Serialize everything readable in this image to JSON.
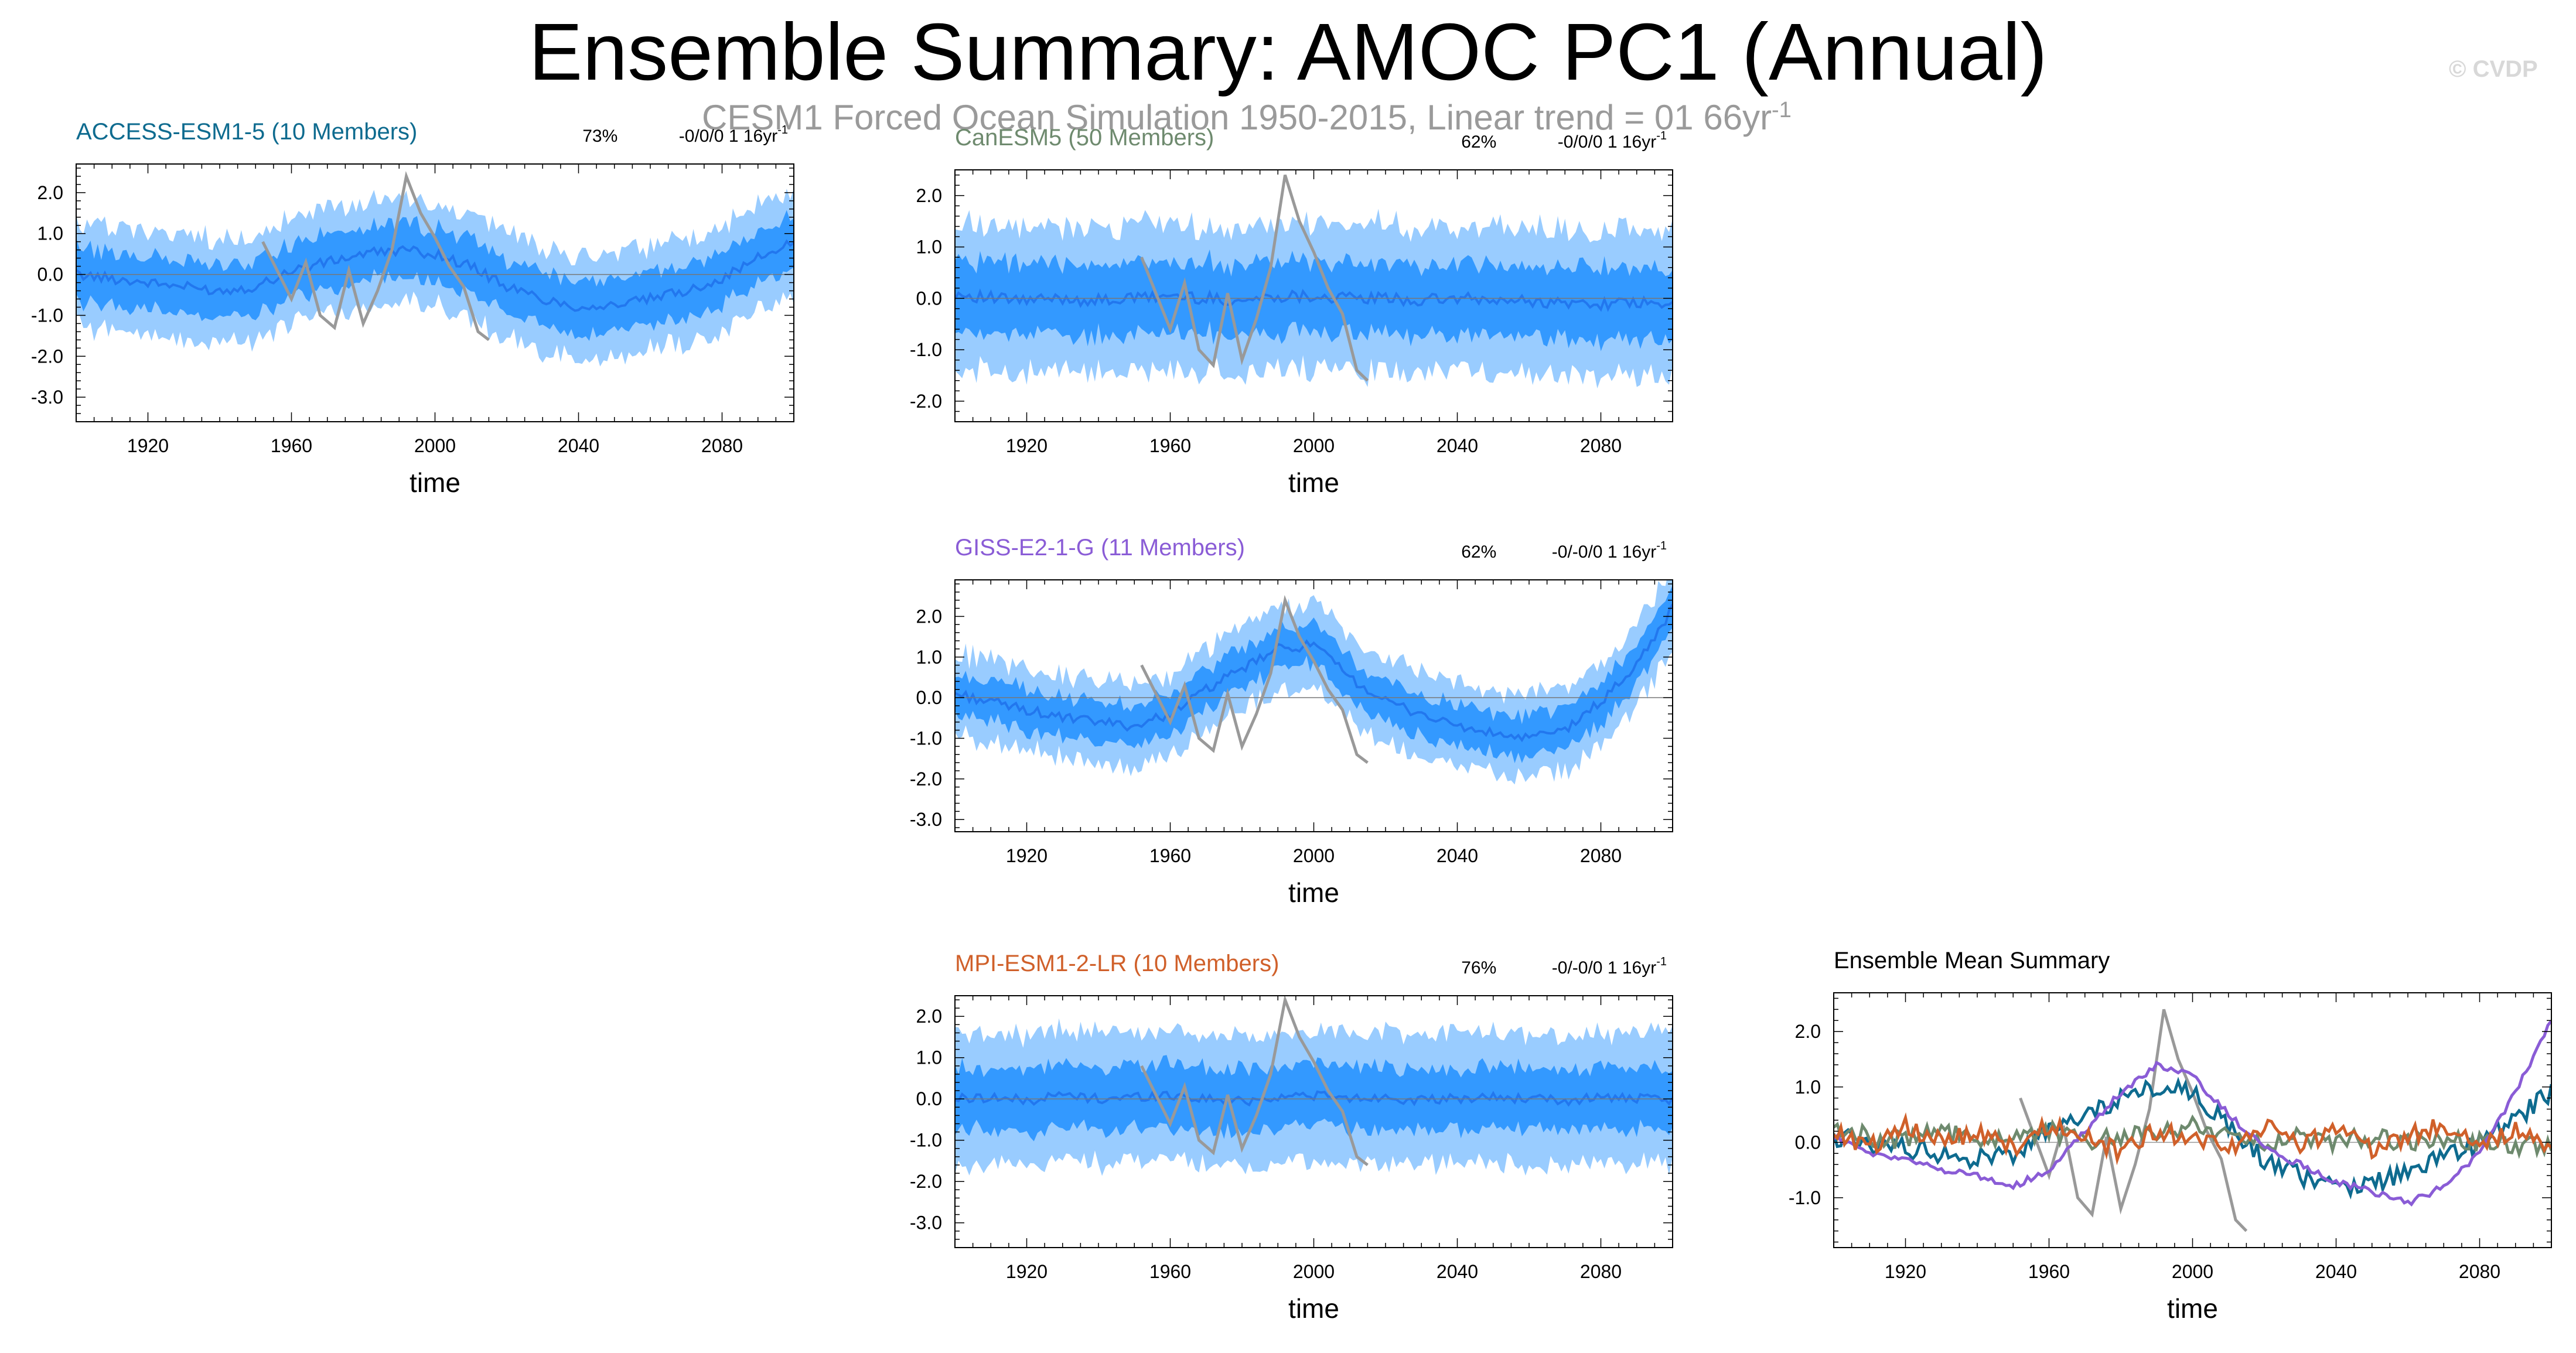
{
  "title": "Ensemble Summary: AMOC PC1 (Annual)",
  "subtitle": {
    "text": "CESM1 Forced Ocean Simulation 1950-2015, Linear trend = 01 66yr",
    "superscript": "-1"
  },
  "watermark": "© CVDP",
  "colors": {
    "band_outer": "#99ccff",
    "band_inner": "#3399ff",
    "ensemble_mean_line": "#2277ee",
    "observations": "#999999",
    "access": "#0e6b8f",
    "canesm": "#6e8a6e",
    "giss": "#8a5cd6",
    "mpi": "#d0602a"
  },
  "chart_data": [
    {
      "id": "access",
      "type": "area",
      "title": "ACCESS-ESM1-5 (10 Members)",
      "title_color": "#0e6b8f",
      "percent_label": "73%",
      "trend_label": "-0/0/0 1 16yr",
      "trend_superscript": "-1",
      "xlabel": "time",
      "ylabel": "",
      "xlim": [
        1900,
        2100
      ],
      "ylim": [
        -3.6,
        2.7
      ],
      "x_ticks": [
        1920,
        1960,
        2000,
        2040,
        2080
      ],
      "y_ticks": [
        -3.0,
        -2.0,
        -1.0,
        0.0,
        1.0,
        2.0
      ],
      "y_tick_labels": [
        "-3.0",
        "-2.0",
        "-1.0",
        "0.0",
        "1.0",
        "2.0"
      ],
      "series": [
        {
          "name": "ensemble mean",
          "x": [
            1900,
            1910,
            1920,
            1930,
            1940,
            1950,
            1960,
            1970,
            1980,
            1990,
            2000,
            2010,
            2020,
            2030,
            2040,
            2050,
            2060,
            2070,
            2080,
            2090,
            2100
          ],
          "values": [
            0.0,
            -0.1,
            -0.2,
            -0.3,
            -0.4,
            -0.3,
            0.1,
            0.3,
            0.5,
            0.6,
            0.5,
            0.2,
            -0.3,
            -0.6,
            -0.8,
            -0.75,
            -0.6,
            -0.4,
            -0.1,
            0.4,
            0.8
          ]
        },
        {
          "name": "observations",
          "x": [
            1952,
            1956,
            1960,
            1964,
            1968,
            1972,
            1976,
            1980,
            1984,
            1988,
            1992,
            1996,
            2000,
            2004,
            2008,
            2012,
            2015
          ],
          "values": [
            0.8,
            0.1,
            -0.6,
            0.3,
            -1.0,
            -1.3,
            0.1,
            -1.2,
            -0.4,
            0.6,
            2.4,
            1.5,
            0.9,
            0.2,
            -0.3,
            -1.4,
            -1.6
          ]
        }
      ],
      "band_inner_halfwidth": 0.5,
      "band_outer_halfwidth": 1.05
    },
    {
      "id": "canesm",
      "type": "area",
      "title": "CanESM5 (50 Members)",
      "title_color": "#6e8a6e",
      "percent_label": "62%",
      "trend_label": "-0/0/0 1 16yr",
      "trend_superscript": "-1",
      "xlabel": "time",
      "ylabel": "",
      "xlim": [
        1900,
        2100
      ],
      "ylim": [
        -2.4,
        2.5
      ],
      "x_ticks": [
        1920,
        1960,
        2000,
        2040,
        2080
      ],
      "y_ticks": [
        -2.0,
        -1.0,
        0.0,
        1.0,
        2.0
      ],
      "y_tick_labels": [
        "-2.0",
        "-1.0",
        "0.0",
        "1.0",
        "2.0"
      ],
      "series": [
        {
          "name": "ensemble mean",
          "x": [
            1900,
            1910,
            1920,
            1930,
            1940,
            1950,
            1960,
            1970,
            1980,
            1990,
            2000,
            2010,
            2020,
            2030,
            2040,
            2050,
            2060,
            2070,
            2080,
            2090,
            2100
          ],
          "values": [
            0.1,
            0.0,
            -0.05,
            0.0,
            -0.05,
            0.0,
            0.05,
            0.0,
            -0.05,
            0.05,
            0.05,
            0.0,
            0.0,
            -0.05,
            0.0,
            -0.05,
            -0.05,
            -0.1,
            -0.1,
            -0.1,
            -0.15
          ]
        },
        {
          "name": "observations",
          "x": [
            1952,
            1956,
            1960,
            1964,
            1968,
            1972,
            1976,
            1980,
            1984,
            1988,
            1992,
            1996,
            2000,
            2004,
            2008,
            2012,
            2015
          ],
          "values": [
            0.8,
            0.1,
            -0.6,
            0.3,
            -1.0,
            -1.3,
            0.1,
            -1.2,
            -0.4,
            0.6,
            2.4,
            1.5,
            0.9,
            0.2,
            -0.3,
            -1.4,
            -1.6
          ]
        }
      ],
      "band_inner_halfwidth": 0.55,
      "band_outer_halfwidth": 1.2
    },
    {
      "id": "giss",
      "type": "area",
      "title": "GISS-E2-1-G (11 Members)",
      "title_color": "#8a5cd6",
      "percent_label": "62%",
      "trend_label": "-0/-0/0 1 16yr",
      "trend_superscript": "-1",
      "xlabel": "time",
      "ylabel": "",
      "xlim": [
        1900,
        2100
      ],
      "ylim": [
        -3.3,
        2.9
      ],
      "x_ticks": [
        1920,
        1960,
        2000,
        2040,
        2080
      ],
      "y_ticks": [
        -3.0,
        -2.0,
        -1.0,
        0.0,
        1.0,
        2.0
      ],
      "y_tick_labels": [
        "-3.0",
        "-2.0",
        "-1.0",
        "0.0",
        "1.0",
        "2.0"
      ],
      "series": [
        {
          "name": "ensemble mean",
          "x": [
            1900,
            1910,
            1920,
            1930,
            1940,
            1950,
            1960,
            1970,
            1980,
            1990,
            2000,
            2010,
            2020,
            2030,
            2040,
            2050,
            2060,
            2070,
            2080,
            2090,
            2100
          ],
          "values": [
            0.1,
            -0.1,
            -0.3,
            -0.5,
            -0.6,
            -0.7,
            -0.4,
            0.2,
            0.7,
            1.2,
            1.3,
            0.5,
            -0.1,
            -0.4,
            -0.7,
            -0.9,
            -1.0,
            -0.8,
            -0.1,
            0.8,
            2.2
          ]
        },
        {
          "name": "observations",
          "x": [
            1952,
            1956,
            1960,
            1964,
            1968,
            1972,
            1976,
            1980,
            1984,
            1988,
            1992,
            1996,
            2000,
            2004,
            2008,
            2012,
            2015
          ],
          "values": [
            0.8,
            0.1,
            -0.6,
            0.3,
            -1.0,
            -1.3,
            0.1,
            -1.2,
            -0.4,
            0.6,
            2.4,
            1.5,
            0.9,
            0.2,
            -0.3,
            -1.4,
            -1.6
          ]
        }
      ],
      "band_inner_halfwidth": 0.35,
      "band_outer_halfwidth": 0.8
    },
    {
      "id": "mpi",
      "type": "area",
      "title": "MPI-ESM1-2-LR (10 Members)",
      "title_color": "#d0602a",
      "percent_label": "76%",
      "trend_label": "-0/-0/0 1 16yr",
      "trend_superscript": "-1",
      "xlabel": "time",
      "ylabel": "",
      "xlim": [
        1900,
        2100
      ],
      "ylim": [
        -3.6,
        2.5
      ],
      "x_ticks": [
        1920,
        1960,
        2000,
        2040,
        2080
      ],
      "y_ticks": [
        -3.0,
        -2.0,
        -1.0,
        0.0,
        1.0,
        2.0
      ],
      "y_tick_labels": [
        "-3.0",
        "-2.0",
        "-1.0",
        "0.0",
        "1.0",
        "2.0"
      ],
      "series": [
        {
          "name": "ensemble mean",
          "x": [
            1900,
            1910,
            1920,
            1930,
            1940,
            1950,
            1960,
            1970,
            1980,
            1990,
            2000,
            2010,
            2020,
            2030,
            2040,
            2050,
            2060,
            2070,
            2080,
            2090,
            2100
          ],
          "values": [
            0.0,
            0.05,
            -0.05,
            0.1,
            0.0,
            0.05,
            0.1,
            0.0,
            -0.05,
            0.05,
            0.1,
            0.0,
            0.05,
            -0.05,
            0.0,
            0.05,
            0.0,
            -0.05,
            0.05,
            0.0,
            -0.05
          ]
        },
        {
          "name": "observations",
          "x": [
            1952,
            1956,
            1960,
            1964,
            1968,
            1972,
            1976,
            1980,
            1984,
            1988,
            1992,
            1996,
            2000,
            2004,
            2008,
            2012,
            2015
          ],
          "values": [
            0.8,
            0.1,
            -0.6,
            0.3,
            -1.0,
            -1.3,
            0.1,
            -1.2,
            -0.4,
            0.6,
            2.4,
            1.5,
            0.9,
            0.2,
            -0.3,
            -1.4,
            -1.6
          ]
        }
      ],
      "band_inner_halfwidth": 0.6,
      "band_outer_halfwidth": 1.35
    },
    {
      "id": "summary",
      "type": "line",
      "title": "Ensemble Mean Summary",
      "title_color": "#000000",
      "xlabel": "time",
      "ylabel": "",
      "xlim": [
        1900,
        2100
      ],
      "ylim": [
        -1.9,
        2.7
      ],
      "x_ticks": [
        1920,
        1960,
        2000,
        2040,
        2080
      ],
      "y_ticks": [
        -1.0,
        0.0,
        1.0,
        2.0
      ],
      "y_tick_labels": [
        "-1.0",
        "0.0",
        "1.0",
        "2.0"
      ],
      "series": [
        {
          "name": "Observations",
          "color": "#999999",
          "x": [
            1952,
            1956,
            1960,
            1964,
            1968,
            1972,
            1976,
            1980,
            1984,
            1988,
            1992,
            1996,
            2000,
            2004,
            2008,
            2012,
            2015
          ],
          "values": [
            0.8,
            0.1,
            -0.6,
            0.3,
            -1.0,
            -1.3,
            0.1,
            -1.2,
            -0.4,
            0.6,
            2.4,
            1.5,
            0.9,
            0.2,
            -0.3,
            -1.4,
            -1.6
          ]
        },
        {
          "name": "ACCESS-ESM1-5",
          "color": "#0e6b8f",
          "x": [
            1900,
            1910,
            1920,
            1930,
            1940,
            1950,
            1960,
            1970,
            1980,
            1990,
            2000,
            2010,
            2020,
            2030,
            2040,
            2050,
            2060,
            2070,
            2080,
            2090,
            2100
          ],
          "values": [
            0.1,
            0.0,
            -0.1,
            -0.2,
            -0.3,
            -0.2,
            0.2,
            0.5,
            0.8,
            1.0,
            0.9,
            0.3,
            -0.3,
            -0.6,
            -0.8,
            -0.75,
            -0.5,
            -0.3,
            0.0,
            0.4,
            0.9
          ]
        },
        {
          "name": "CanESM5",
          "color": "#6e8a6e",
          "x": [
            1900,
            1910,
            1920,
            1930,
            1940,
            1950,
            1960,
            1970,
            1980,
            1990,
            2000,
            2010,
            2020,
            2030,
            2040,
            2050,
            2060,
            2070,
            2080,
            2090,
            2100
          ],
          "values": [
            0.3,
            0.1,
            0.0,
            0.2,
            0.0,
            0.1,
            0.2,
            0.0,
            0.1,
            0.2,
            0.3,
            0.1,
            0.0,
            0.1,
            0.0,
            0.1,
            0.0,
            0.1,
            0.0,
            -0.1,
            0.0
          ]
        },
        {
          "name": "GISS-E2-1-G",
          "color": "#8a5cd6",
          "x": [
            1900,
            1910,
            1920,
            1930,
            1940,
            1950,
            1960,
            1970,
            1980,
            1990,
            2000,
            2010,
            2020,
            2030,
            2040,
            2050,
            2060,
            2070,
            2080,
            2090,
            2100
          ],
          "values": [
            0.1,
            -0.2,
            -0.3,
            -0.5,
            -0.6,
            -0.8,
            -0.5,
            0.2,
            0.9,
            1.4,
            1.2,
            0.5,
            -0.1,
            -0.4,
            -0.7,
            -0.9,
            -1.1,
            -0.8,
            -0.2,
            0.9,
            2.2
          ]
        },
        {
          "name": "MPI-ESM1-2-LR",
          "color": "#d0602a",
          "x": [
            1900,
            1910,
            1920,
            1930,
            1940,
            1950,
            1960,
            1970,
            1980,
            1990,
            2000,
            2010,
            2020,
            2030,
            2040,
            2050,
            2060,
            2070,
            2080,
            2090,
            2100
          ],
          "values": [
            0.2,
            -0.1,
            0.3,
            0.0,
            0.2,
            -0.1,
            0.3,
            0.1,
            -0.2,
            0.2,
            0.1,
            -0.1,
            0.3,
            0.0,
            0.2,
            -0.1,
            0.1,
            0.3,
            -0.1,
            0.2,
            -0.2
          ]
        }
      ]
    }
  ]
}
